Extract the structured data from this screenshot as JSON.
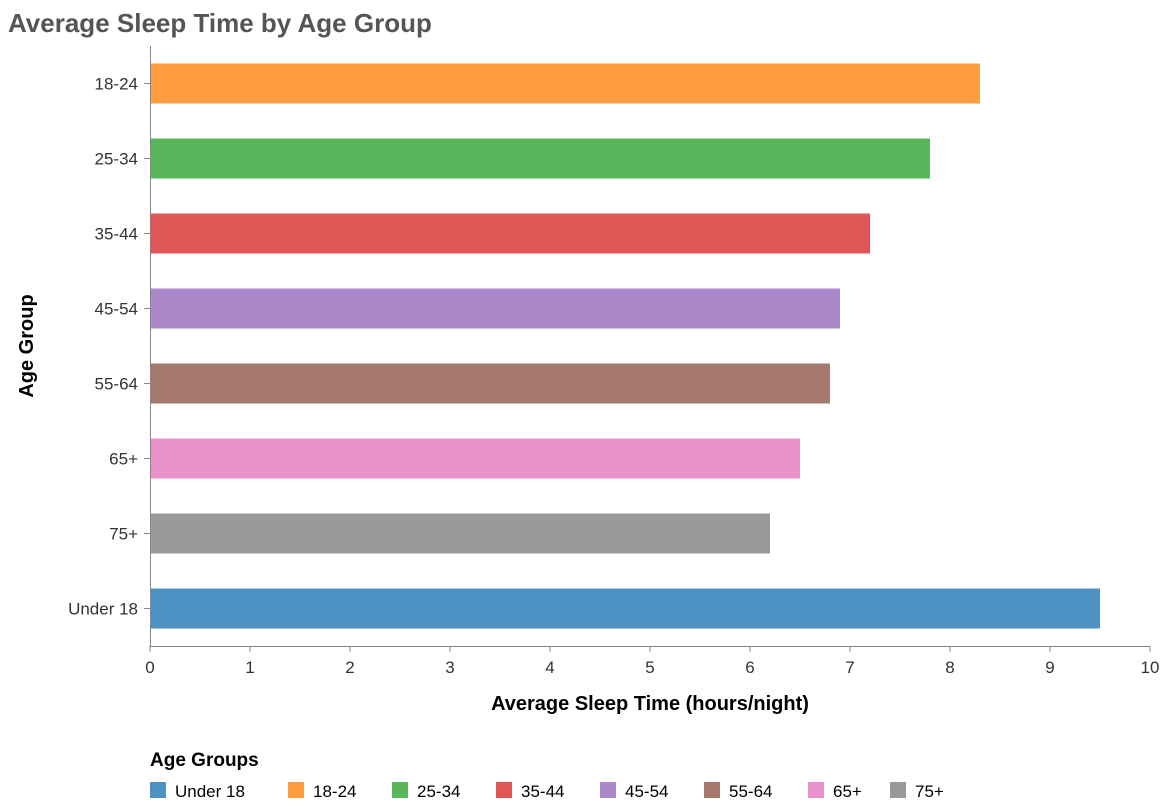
{
  "chart_data": {
    "type": "bar",
    "orientation": "horizontal",
    "title": "Average Sleep Time by Age Group",
    "xlabel": "Average Sleep Time (hours/night)",
    "ylabel": "Age Group",
    "xlim": [
      0,
      10
    ],
    "xticks": [
      0,
      1,
      2,
      3,
      4,
      5,
      6,
      7,
      8,
      9,
      10
    ],
    "grid": false,
    "categories": [
      "18-24",
      "25-34",
      "35-44",
      "45-54",
      "55-64",
      "65+",
      "75+",
      "Under 18"
    ],
    "values": [
      8.3,
      7.8,
      7.2,
      6.9,
      6.8,
      6.5,
      6.2,
      9.5
    ],
    "colors": {
      "Under 18": "#4c92c3",
      "18-24": "#ff9d40",
      "25-34": "#5ab65a",
      "35-44": "#e05656",
      "45-54": "#a987c9",
      "55-64": "#a5796e",
      "65+": "#ea92cc",
      "75+": "#999999"
    },
    "legend": {
      "title": "Age Groups",
      "position": "bottom",
      "entries": [
        "Under 18",
        "18-24",
        "25-34",
        "35-44",
        "45-54",
        "55-64",
        "65+",
        "75+"
      ]
    }
  }
}
